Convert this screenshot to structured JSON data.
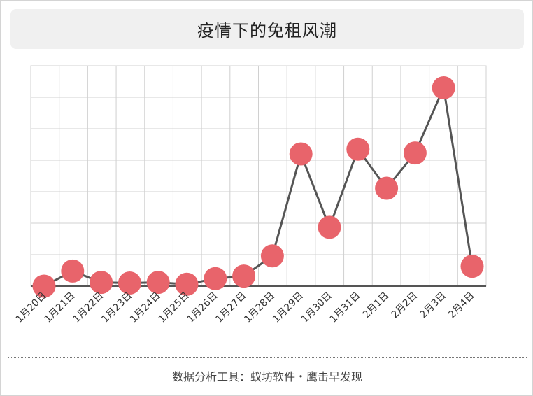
{
  "title": "疫情下的免租风潮",
  "footer": "数据分析工具：蚁坊软件・鹰击早发现",
  "colors": {
    "line": "#555555",
    "marker": "#e8646b",
    "grid": "#d0d0d0",
    "axis": "#555555",
    "title_bg": "#f0f0f0"
  },
  "chart_data": {
    "type": "line",
    "title": "疫情下的免租风潮",
    "xlabel": "",
    "ylabel": "",
    "ylim": [
      0,
      7
    ],
    "grid": true,
    "categories": [
      "1月20日",
      "1月21日",
      "1月22日",
      "1月23日",
      "1月24日",
      "1月25日",
      "1月26日",
      "1月27日",
      "1月28日",
      "1月29日",
      "1月30日",
      "1月31日",
      "2月1日",
      "2月2日",
      "2月3日",
      "2月4日"
    ],
    "series": [
      {
        "values": [
          0.0,
          0.48,
          0.12,
          0.1,
          0.12,
          0.06,
          0.24,
          0.32,
          0.96,
          4.2,
          1.87,
          4.35,
          3.11,
          4.23,
          6.3,
          0.63
        ]
      }
    ]
  }
}
